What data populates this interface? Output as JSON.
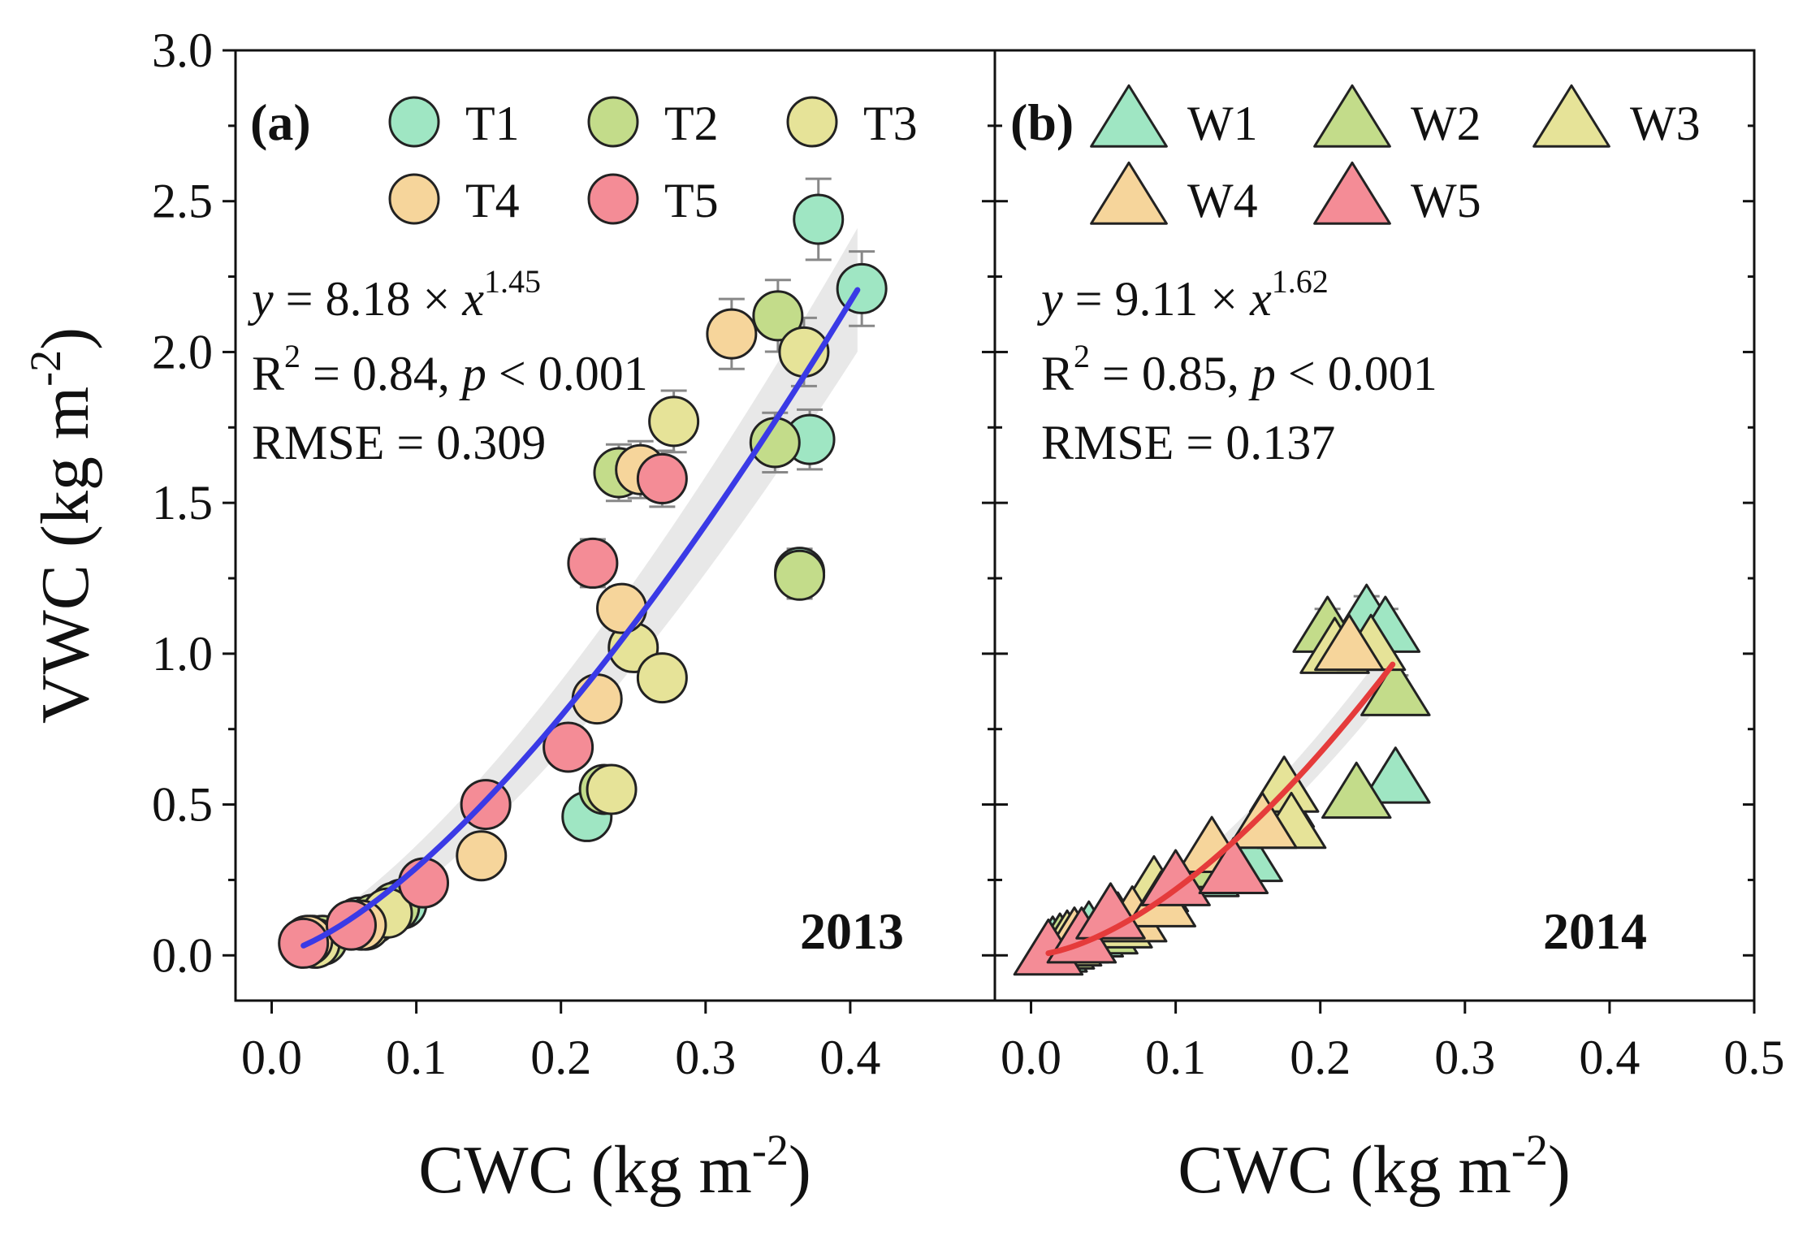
{
  "chart_data": [
    {
      "type": "scatter",
      "panel": "(a)",
      "year": "2013",
      "xlabel": "CWC (kg m",
      "xlabel_exp": "-2",
      "xlabel_close": ")",
      "ylabel": "VWC (kg m",
      "ylabel_exp": "-2",
      "ylabel_close": ")",
      "xlim": [
        -0.025,
        0.5
      ],
      "ylim": [
        -0.15,
        3.0
      ],
      "xticks": [
        "0.0",
        "0.1",
        "0.2",
        "0.3",
        "0.4"
      ],
      "yticks": [
        "0.0",
        "0.5",
        "1.0",
        "1.5",
        "2.0",
        "2.5",
        "3.0"
      ],
      "marker": "circle",
      "fit": {
        "a": 8.18,
        "b": 1.45,
        "x_range": [
          0.022,
          0.405
        ],
        "color": "#3a3ae6"
      },
      "equation": {
        "lhs": "y",
        "mid": " = 8.18 × ",
        "var": "x",
        "exp": "1.45"
      },
      "r2": {
        "base": "R",
        "sup": "2",
        "text": " = 0.84, ",
        "p": "p",
        "rest": " < 0.001"
      },
      "rmse": "RMSE = 0.309",
      "legend": [
        {
          "label": "T1",
          "color": "#9fe6c3"
        },
        {
          "label": "T2",
          "color": "#c3dc8a"
        },
        {
          "label": "T3",
          "color": "#e6e398"
        },
        {
          "label": "T4",
          "color": "#f6d59b"
        },
        {
          "label": "T5",
          "color": "#f48c96"
        }
      ],
      "series": [
        {
          "name": "T1",
          "points": [
            [
              0.028,
              0.05
            ],
            [
              0.06,
              0.11
            ],
            [
              0.09,
              0.17
            ],
            [
              0.218,
              0.46
            ],
            [
              0.365,
              1.27
            ],
            [
              0.372,
              1.71
            ],
            [
              0.378,
              2.44
            ],
            [
              0.408,
              2.21
            ]
          ]
        },
        {
          "name": "T2",
          "points": [
            [
              0.035,
              0.05
            ],
            [
              0.07,
              0.12
            ],
            [
              0.085,
              0.16
            ],
            [
              0.23,
              0.55
            ],
            [
              0.24,
              1.6
            ],
            [
              0.35,
              2.12
            ],
            [
              0.348,
              1.7
            ],
            [
              0.365,
              1.26
            ]
          ]
        },
        {
          "name": "T3",
          "points": [
            [
              0.03,
              0.04
            ],
            [
              0.065,
              0.1
            ],
            [
              0.08,
              0.14
            ],
            [
              0.235,
              0.55
            ],
            [
              0.25,
              1.02
            ],
            [
              0.27,
              0.92
            ],
            [
              0.278,
              1.77
            ],
            [
              0.368,
              2.0
            ]
          ]
        },
        {
          "name": "T4",
          "points": [
            [
              0.025,
              0.05
            ],
            [
              0.062,
              0.1
            ],
            [
              0.145,
              0.33
            ],
            [
              0.225,
              0.85
            ],
            [
              0.242,
              1.15
            ],
            [
              0.255,
              1.61
            ],
            [
              0.318,
              2.06
            ]
          ]
        },
        {
          "name": "T5",
          "points": [
            [
              0.022,
              0.04
            ],
            [
              0.055,
              0.1
            ],
            [
              0.105,
              0.24
            ],
            [
              0.148,
              0.5
            ],
            [
              0.205,
              0.69
            ],
            [
              0.222,
              1.3
            ],
            [
              0.27,
              1.58
            ]
          ]
        }
      ]
    },
    {
      "type": "scatter",
      "panel": "(b)",
      "year": "2014",
      "xlabel": "CWC (kg m",
      "xlabel_exp": "-2",
      "xlabel_close": ")",
      "xlim": [
        -0.025,
        0.5
      ],
      "ylim": [
        -0.15,
        3.0
      ],
      "xticks": [
        "0.0",
        "0.1",
        "0.2",
        "0.3",
        "0.4",
        "0.5"
      ],
      "marker": "triangle",
      "fit": {
        "a": 9.11,
        "b": 1.62,
        "x_range": [
          0.012,
          0.25
        ],
        "color": "#e53b3b"
      },
      "equation": {
        "lhs": "y",
        "mid": " = 9.11 × ",
        "var": "x",
        "exp": "1.62"
      },
      "r2": {
        "base": "R",
        "sup": "2",
        "text": " = 0.85, ",
        "p": "p",
        "rest": " < 0.001"
      },
      "rmse": "RMSE = 0.137",
      "legend": [
        {
          "label": "W1",
          "color": "#9fe6c3"
        },
        {
          "label": "W2",
          "color": "#c3dc8a"
        },
        {
          "label": "W3",
          "color": "#e6e398"
        },
        {
          "label": "W4",
          "color": "#f6d59b"
        },
        {
          "label": "W5",
          "color": "#f48c96"
        }
      ],
      "series": [
        {
          "name": "W1",
          "points": [
            [
              0.015,
              0.02
            ],
            [
              0.04,
              0.07
            ],
            [
              0.12,
              0.27
            ],
            [
              0.15,
              0.32
            ],
            [
              0.232,
              1.12
            ],
            [
              0.245,
              1.08
            ],
            [
              0.252,
              0.58
            ]
          ]
        },
        {
          "name": "W2",
          "points": [
            [
              0.02,
              0.03
            ],
            [
              0.05,
              0.08
            ],
            [
              0.13,
              0.3
            ],
            [
              0.172,
              0.5
            ],
            [
              0.205,
              1.08
            ],
            [
              0.225,
              0.53
            ],
            [
              0.252,
              0.87
            ]
          ]
        },
        {
          "name": "W3",
          "points": [
            [
              0.025,
              0.04
            ],
            [
              0.06,
              0.1
            ],
            [
              0.085,
              0.22
            ],
            [
              0.175,
              0.55
            ],
            [
              0.18,
              0.43
            ],
            [
              0.21,
              1.01
            ],
            [
              0.235,
              1.02
            ]
          ]
        },
        {
          "name": "W4",
          "points": [
            [
              0.03,
              0.05
            ],
            [
              0.07,
              0.12
            ],
            [
              0.09,
              0.17
            ],
            [
              0.125,
              0.35
            ],
            [
              0.16,
              0.43
            ],
            [
              0.22,
              1.02
            ]
          ]
        },
        {
          "name": "W5",
          "points": [
            [
              0.012,
              0.01
            ],
            [
              0.035,
              0.05
            ],
            [
              0.055,
              0.13
            ],
            [
              0.1,
              0.24
            ],
            [
              0.14,
              0.28
            ]
          ]
        }
      ]
    }
  ]
}
